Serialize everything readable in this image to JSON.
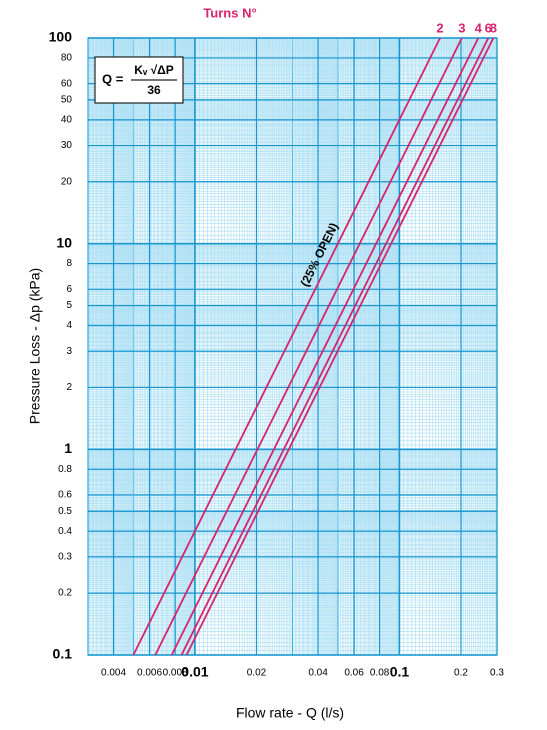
{
  "chart_data": {
    "type": "line",
    "title": "Turns N°",
    "x_label": "Flow rate - Q (l/s)",
    "y_label": "Pressure Loss  - Δp (kPa)",
    "annotation": "(25% OPEN)",
    "formula": {
      "lhs": "Q =",
      "numerator": "Kᵥ √ΔP",
      "denominator": "36"
    },
    "log_x": true,
    "log_y": true,
    "grid": true,
    "minor_grid": true,
    "xlim": [
      0.003,
      0.3
    ],
    "ylim": [
      0.1,
      100
    ],
    "xticks": [
      0.004,
      0.006,
      0.008,
      0.01,
      0.02,
      0.04,
      0.06,
      0.08,
      0.1,
      0.2,
      0.3
    ],
    "yticks": [
      0.1,
      0.2,
      0.3,
      0.4,
      0.5,
      0.6,
      0.8,
      1,
      2,
      3,
      4,
      5,
      6,
      8,
      10,
      20,
      30,
      40,
      50,
      60,
      80,
      100
    ],
    "series": [
      {
        "name": "2",
        "color": "#d6246e",
        "x": [
          0.005,
          0.158
        ],
        "values": [
          0.1,
          100
        ]
      },
      {
        "name": "3",
        "color": "#d6246e",
        "x": [
          0.0064,
          0.202
        ],
        "values": [
          0.1,
          100
        ]
      },
      {
        "name": "4",
        "color": "#d6246e",
        "x": [
          0.0077,
          0.243
        ],
        "values": [
          0.1,
          100
        ]
      },
      {
        "name": "6",
        "color": "#d6246e",
        "x": [
          0.0086,
          0.272
        ],
        "values": [
          0.1,
          100
        ]
      },
      {
        "name": "8",
        "color": "#d6246e",
        "x": [
          0.0091,
          0.288
        ],
        "values": [
          0.1,
          100
        ]
      }
    ]
  }
}
